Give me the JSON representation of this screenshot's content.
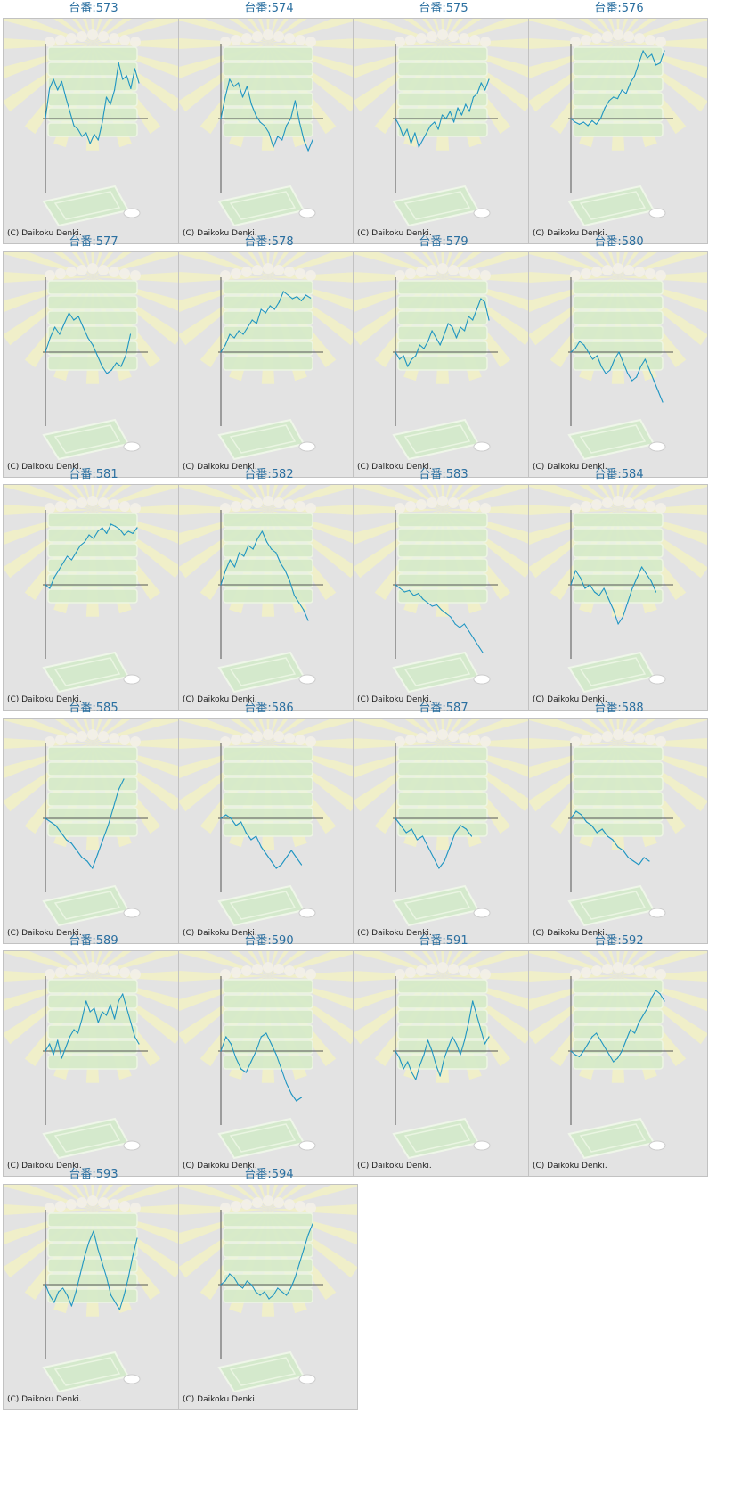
{
  "colors": {
    "title": "#2a6fa0",
    "line": "#1f95c2",
    "axis": "#555555",
    "panel_bg": "#e3e3e3"
  },
  "copyright": "(C) Daikoku Denki.",
  "chart_data": [
    {
      "type": "line",
      "title": "台番:573",
      "values": [
        0,
        42,
        55,
        40,
        52,
        30,
        10,
        -10,
        -15,
        -25,
        -20,
        -35,
        -22,
        -30,
        -5,
        30,
        20,
        40,
        78,
        55,
        60,
        42,
        70,
        50
      ]
    },
    {
      "type": "line",
      "title": "台番:574",
      "values": [
        0,
        30,
        55,
        45,
        50,
        30,
        45,
        20,
        5,
        -5,
        -10,
        -20,
        -40,
        -25,
        -30,
        -10,
        0,
        25,
        -5,
        -30,
        -45,
        -30
      ]
    },
    {
      "type": "line",
      "title": "台番:575",
      "values": [
        0,
        -10,
        -25,
        -15,
        -35,
        -20,
        -40,
        -30,
        -20,
        -10,
        -5,
        -15,
        5,
        0,
        10,
        -5,
        15,
        5,
        20,
        10,
        30,
        35,
        50,
        40,
        55
      ]
    },
    {
      "type": "line",
      "title": "台番:576",
      "values": [
        0,
        -5,
        -8,
        -5,
        -10,
        -3,
        -8,
        0,
        15,
        25,
        30,
        28,
        40,
        35,
        50,
        60,
        78,
        95,
        85,
        90,
        75,
        78,
        95
      ]
    },
    {
      "type": "line",
      "title": "台番:577",
      "values": [
        0,
        20,
        35,
        25,
        40,
        55,
        45,
        50,
        35,
        20,
        10,
        -5,
        -20,
        -30,
        -25,
        -15,
        -20,
        -5,
        25
      ]
    },
    {
      "type": "line",
      "title": "台番:578",
      "values": [
        0,
        10,
        25,
        20,
        30,
        25,
        35,
        45,
        40,
        60,
        55,
        65,
        60,
        70,
        85,
        80,
        75,
        78,
        72,
        80,
        76
      ]
    },
    {
      "type": "line",
      "title": "台番:579",
      "values": [
        0,
        -10,
        -5,
        -20,
        -10,
        -5,
        10,
        5,
        15,
        30,
        20,
        10,
        25,
        40,
        35,
        20,
        35,
        30,
        50,
        45,
        60,
        75,
        70,
        45
      ]
    },
    {
      "type": "line",
      "title": "台番:580",
      "values": [
        0,
        5,
        15,
        10,
        0,
        -10,
        -5,
        -20,
        -30,
        -25,
        -10,
        0,
        -15,
        -30,
        -40,
        -35,
        -20,
        -10,
        -25,
        -40,
        -55,
        -70
      ]
    },
    {
      "type": "line",
      "title": "台番:581",
      "values": [
        0,
        -5,
        10,
        20,
        30,
        40,
        35,
        45,
        55,
        60,
        70,
        65,
        75,
        80,
        72,
        85,
        82,
        78,
        70,
        75,
        72,
        80
      ]
    },
    {
      "type": "line",
      "title": "台番:582",
      "values": [
        0,
        20,
        35,
        25,
        45,
        40,
        55,
        50,
        65,
        75,
        60,
        50,
        45,
        30,
        20,
        5,
        -15,
        -25,
        -35,
        -50
      ]
    },
    {
      "type": "line",
      "title": "台番:583",
      "values": [
        0,
        -5,
        -10,
        -8,
        -15,
        -12,
        -20,
        -25,
        -30,
        -28,
        -35,
        -40,
        -45,
        -55,
        -60,
        -55,
        -65,
        -75,
        -85,
        -95
      ]
    },
    {
      "type": "line",
      "title": "台番:584",
      "values": [
        0,
        20,
        10,
        -5,
        0,
        -10,
        -15,
        -5,
        -20,
        -35,
        -55,
        -45,
        -25,
        -5,
        10,
        25,
        15,
        5,
        -10
      ]
    },
    {
      "type": "line",
      "title": "台番:585",
      "values": [
        0,
        -5,
        -10,
        -20,
        -30,
        -35,
        -45,
        -55,
        -60,
        -70,
        -50,
        -30,
        -10,
        15,
        40,
        55
      ]
    },
    {
      "type": "line",
      "title": "台番:586",
      "values": [
        0,
        5,
        0,
        -10,
        -5,
        -20,
        -30,
        -25,
        -40,
        -50,
        -60,
        -70,
        -65,
        -55,
        -45,
        -55,
        -65
      ]
    },
    {
      "type": "line",
      "title": "台番:587",
      "values": [
        0,
        -10,
        -20,
        -15,
        -30,
        -25,
        -40,
        -55,
        -70,
        -60,
        -40,
        -20,
        -10,
        -15,
        -25
      ]
    },
    {
      "type": "line",
      "title": "台番:588",
      "values": [
        0,
        10,
        5,
        -5,
        -10,
        -20,
        -15,
        -25,
        -30,
        -40,
        -45,
        -55,
        -60,
        -65,
        -55,
        -60
      ]
    },
    {
      "type": "line",
      "title": "台番:589",
      "values": [
        0,
        10,
        -5,
        15,
        -10,
        5,
        20,
        30,
        25,
        45,
        70,
        55,
        60,
        40,
        55,
        50,
        65,
        45,
        70,
        80,
        60,
        40,
        20,
        10
      ]
    },
    {
      "type": "line",
      "title": "台番:590",
      "values": [
        0,
        20,
        10,
        -10,
        -25,
        -30,
        -15,
        0,
        20,
        25,
        10,
        -5,
        -25,
        -45,
        -60,
        -70,
        -65
      ]
    },
    {
      "type": "line",
      "title": "台番:591",
      "values": [
        0,
        -10,
        -25,
        -15,
        -30,
        -40,
        -20,
        -5,
        15,
        0,
        -20,
        -35,
        -10,
        5,
        20,
        10,
        -5,
        15,
        40,
        70,
        50,
        30,
        10,
        20
      ]
    },
    {
      "type": "line",
      "title": "台番:592",
      "values": [
        0,
        -5,
        -8,
        0,
        10,
        20,
        25,
        15,
        5,
        -5,
        -15,
        -10,
        0,
        15,
        30,
        25,
        40,
        50,
        60,
        75,
        85,
        80,
        70
      ]
    },
    {
      "type": "line",
      "title": "台番:593",
      "values": [
        0,
        -15,
        -25,
        -10,
        -5,
        -15,
        -30,
        -10,
        15,
        40,
        60,
        75,
        50,
        30,
        10,
        -15,
        -25,
        -35,
        -15,
        10,
        40,
        65
      ]
    },
    {
      "type": "line",
      "title": "台番:594",
      "values": [
        0,
        5,
        15,
        10,
        0,
        -5,
        5,
        0,
        -10,
        -15,
        -10,
        -20,
        -15,
        -5,
        -10,
        -15,
        -5,
        10,
        30,
        50,
        70,
        85
      ]
    }
  ]
}
